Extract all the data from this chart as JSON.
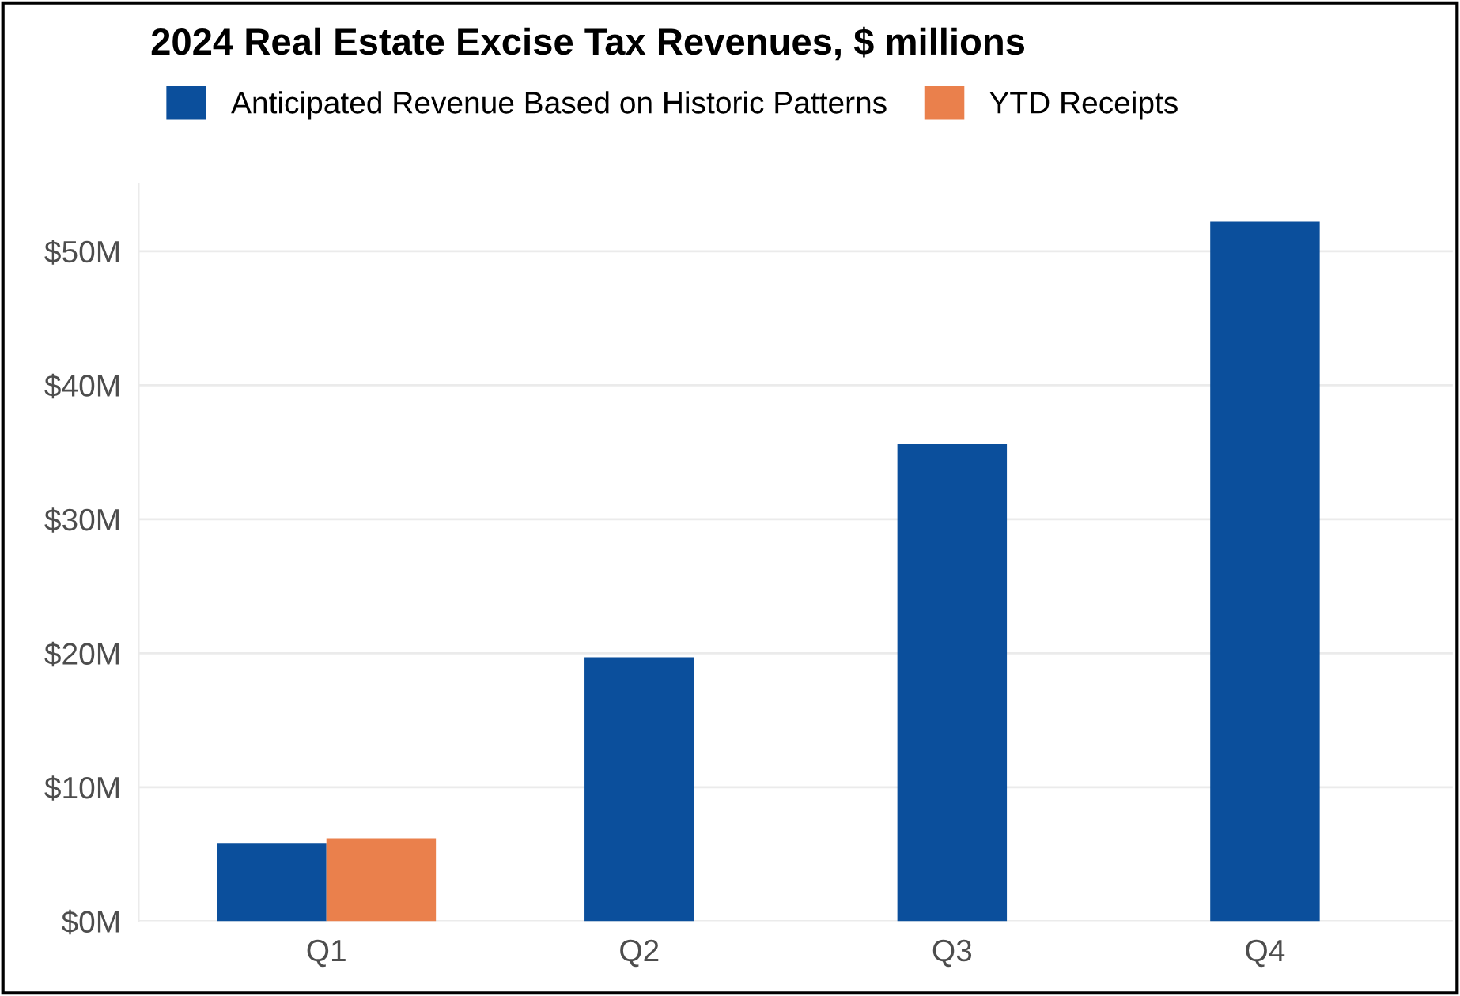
{
  "chart_data": {
    "type": "bar",
    "title": "2024 Real Estate Excise Tax Revenues, $ millions",
    "categories": [
      "Q1",
      "Q2",
      "Q3",
      "Q4"
    ],
    "series": [
      {
        "name": "Anticipated Revenue Based on Historic Patterns",
        "color": "#0b4f9c",
        "values": [
          5.8,
          19.7,
          35.6,
          52.2
        ]
      },
      {
        "name": "YTD Receipts",
        "color": "#ea804c",
        "values": [
          6.2,
          null,
          null,
          null
        ]
      }
    ],
    "ylim": [
      0,
      55
    ],
    "yticks": [
      {
        "value": 0,
        "label": "$0M"
      },
      {
        "value": 10,
        "label": "$10M"
      },
      {
        "value": 20,
        "label": "$20M"
      },
      {
        "value": 30,
        "label": "$30M"
      },
      {
        "value": 40,
        "label": "$40M"
      },
      {
        "value": 50,
        "label": "$50M"
      }
    ],
    "grid": "y",
    "legend": "top"
  }
}
